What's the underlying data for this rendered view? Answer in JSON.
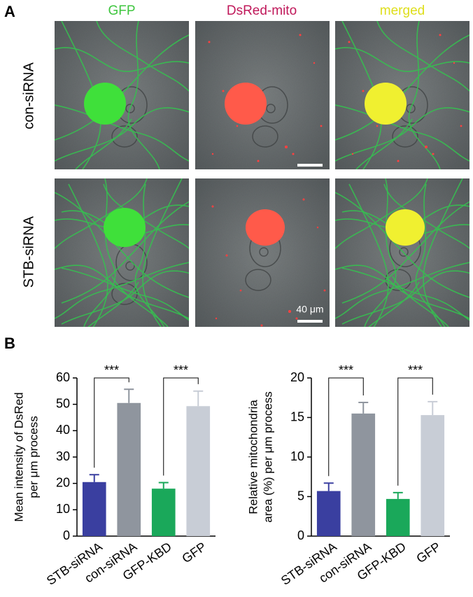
{
  "panel_labels": [
    "A",
    "B"
  ],
  "columns": [
    "GFP",
    "DsRed-mito",
    "merged"
  ],
  "rows": [
    "con-siRNA",
    "STB-siRNA"
  ],
  "scale_bar": "40 μm",
  "chart_data": [
    {
      "type": "bar",
      "ylabel": [
        "Mean intensity of DsRed",
        "per  μm process"
      ],
      "categories": [
        "STB-siRNA",
        "con-siRNA",
        "GFP-KBD",
        "GFP"
      ],
      "values": [
        20.5,
        50.5,
        18,
        49.3
      ],
      "errors": [
        2.8,
        5.2,
        2.3,
        5.7
      ],
      "colors": [
        "#3a3fa0",
        "#8f959e",
        "#1aa85a",
        "#c8cdd6"
      ],
      "ylim": [
        0,
        60
      ],
      "yticks": [
        0,
        10,
        20,
        30,
        40,
        50,
        60
      ],
      "significance": [
        "***",
        "***"
      ]
    },
    {
      "type": "bar",
      "ylabel": [
        "Relative mitochondria",
        "area (%) per μm process"
      ],
      "categories": [
        "STB-siRNA",
        "con-siRNA",
        "GFP-KBD",
        "GFP"
      ],
      "values": [
        5.7,
        15.5,
        4.7,
        15.3
      ],
      "errors": [
        1.0,
        1.4,
        0.8,
        1.7
      ],
      "colors": [
        "#3a3fa0",
        "#8f959e",
        "#1aa85a",
        "#c8cdd6"
      ],
      "ylim": [
        0,
        20
      ],
      "yticks": [
        0,
        5,
        10,
        15,
        20
      ],
      "significance": [
        "***",
        "***"
      ]
    }
  ]
}
